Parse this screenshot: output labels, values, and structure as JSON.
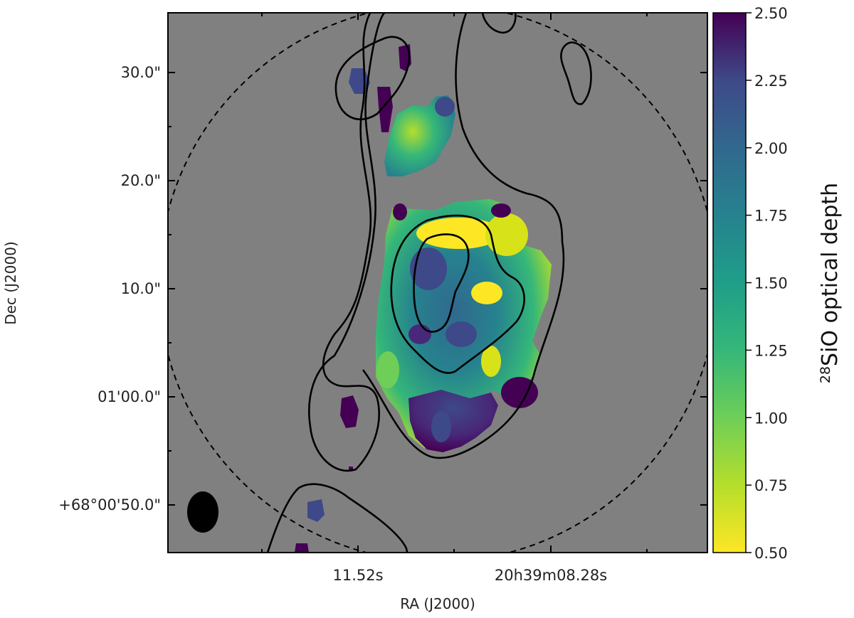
{
  "chart_data": {
    "type": "heatmap",
    "xlabel": "RA (J2000)",
    "ylabel": "Dec (J2000)",
    "x_ticks": [
      "11.52s",
      "20h39m08.28s"
    ],
    "y_ticks": [
      "30.0\"",
      "20.0\"",
      "10.0\"",
      "01'00.0\"",
      "+68°00'50.0\""
    ],
    "colorbar": {
      "label_prefix": "28",
      "label_main": "SiO optical depth",
      "min": 0.5,
      "max": 2.5,
      "ticks": [
        "2.50",
        "2.25",
        "2.00",
        "1.75",
        "1.50",
        "1.25",
        "1.00",
        "0.75",
        "0.50"
      ],
      "colormap": "viridis_r"
    },
    "features": {
      "primary_beam_circle": "dashed",
      "contour_levels": 3,
      "beam_ellipse": "bottom-left",
      "background_color": "#808080"
    },
    "regions": [
      {
        "id": "central-core",
        "mean_value": 1.6
      },
      {
        "id": "northern-clump",
        "mean_value": 1.1
      },
      {
        "id": "southern-lobe",
        "mean_value": 2.3
      },
      {
        "id": "north-knot-a",
        "mean_value": 1.9
      },
      {
        "id": "north-knot-b",
        "mean_value": 2.4
      },
      {
        "id": "west-knot",
        "mean_value": 2.4
      },
      {
        "id": "southwest-knot",
        "mean_value": 2.3
      },
      {
        "id": "east-knot",
        "mean_value": 2.4
      }
    ]
  }
}
